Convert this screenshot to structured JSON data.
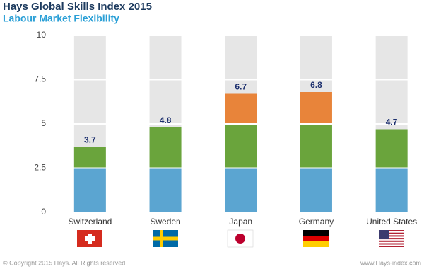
{
  "chart_data": {
    "type": "bar",
    "title": "Hays Global Skills Index 2015",
    "subtitle": "Labour Market Flexibility",
    "categories": [
      "Switzerland",
      "Sweden",
      "Japan",
      "Germany",
      "United States"
    ],
    "values": [
      3.7,
      4.8,
      6.7,
      6.8,
      4.7
    ],
    "ylim": [
      0,
      10
    ],
    "yticks": [
      0,
      2.5,
      5,
      7.5,
      10
    ],
    "band_colors": [
      "#5ba5d1",
      "#6aa43c",
      "#e8843a",
      "#e6e6e6"
    ],
    "footer_left": "© Copyright 2015 Hays. All Rights reserved.",
    "footer_right": "www.Hays-index.com"
  }
}
